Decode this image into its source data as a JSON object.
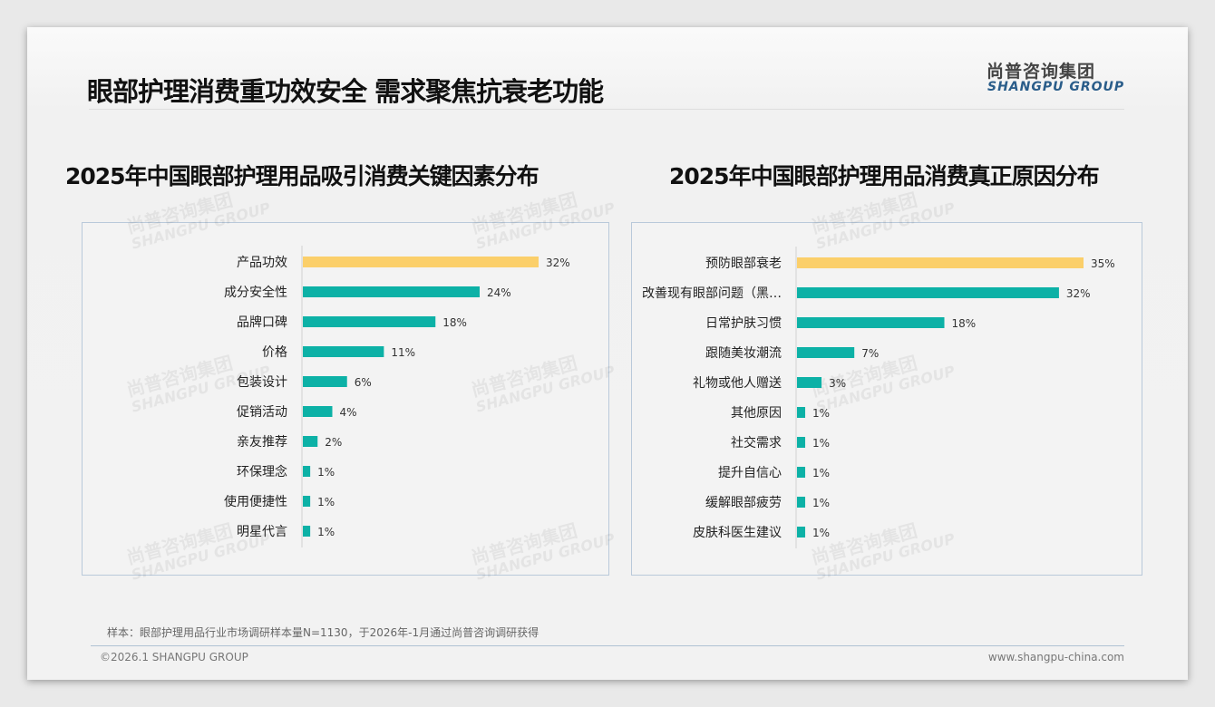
{
  "header": {
    "title": "眼部护理消费重功效安全 需求聚焦抗衰老功能",
    "logo_cn": "尚普咨询集团",
    "logo_en": "SHANGPU GROUP"
  },
  "watermark": {
    "cn": "尚普咨询集团",
    "en": "SHANGPU GROUP"
  },
  "colors": {
    "highlight": "#fbcf6a",
    "bar": "#0cb1a6"
  },
  "chart_data": [
    {
      "type": "bar",
      "orientation": "horizontal",
      "title": "2025年中国眼部护理用品吸引消费关键因素分布",
      "categories": [
        "产品功效",
        "成分安全性",
        "品牌口碑",
        "价格",
        "包装设计",
        "促销活动",
        "亲友推荐",
        "环保理念",
        "使用便捷性",
        "明星代言"
      ],
      "values": [
        32,
        24,
        18,
        11,
        6,
        4,
        2,
        1,
        1,
        1
      ],
      "labels": [
        "32%",
        "24%",
        "18%",
        "11%",
        "6%",
        "4%",
        "2%",
        "1%",
        "1%",
        "1%"
      ],
      "unit": "%",
      "xlim": [
        0,
        32
      ]
    },
    {
      "type": "bar",
      "orientation": "horizontal",
      "title": "2025年中国眼部护理用品消费真正原因分布",
      "categories": [
        "预防眼部衰老",
        "改善现有眼部问题（黑…",
        "日常护肤习惯",
        "跟随美妆潮流",
        "礼物或他人赠送",
        "其他原因",
        "社交需求",
        "提升自信心",
        "缓解眼部疲劳",
        "皮肤科医生建议"
      ],
      "values": [
        35,
        32,
        18,
        7,
        3,
        1,
        1,
        1,
        1,
        1
      ],
      "labels": [
        "35%",
        "32%",
        "18%",
        "7%",
        "3%",
        "1%",
        "1%",
        "1%",
        "1%",
        "1%"
      ],
      "unit": "%",
      "xlim": [
        0,
        35
      ]
    }
  ],
  "footer": {
    "note": "样本：眼部护理用品行业市场调研样本量N=1130，于2026年-1月通过尚普咨询调研获得",
    "copyright": "©2026.1 SHANGPU GROUP",
    "url": "www.shangpu-china.com"
  }
}
